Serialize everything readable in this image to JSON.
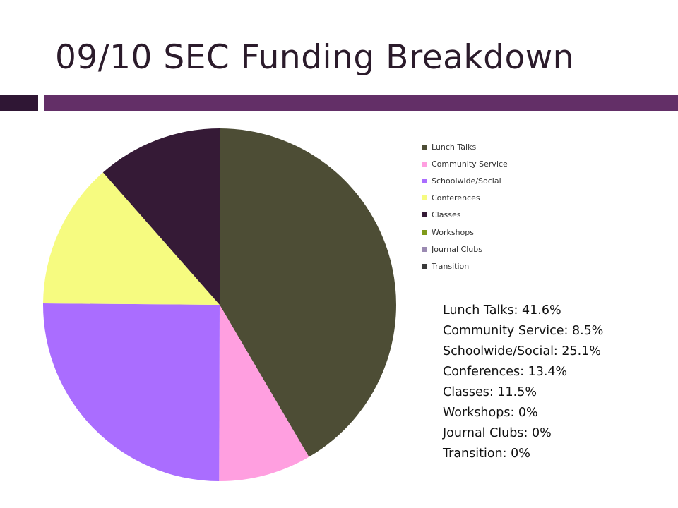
{
  "slide": {
    "title": "09/10 SEC Funding Breakdown"
  },
  "colors": {
    "rule_dark": "#2f1634",
    "rule_light": "#632f67"
  },
  "chart_data": {
    "type": "pie",
    "legend_position": "right",
    "categories": [
      "Lunch Talks",
      "Community Service",
      "Schoolwide/Social",
      "Conferences",
      "Classes",
      "Workshops",
      "Journal Clubs",
      "Transition"
    ],
    "values": [
      41.6,
      8.5,
      25.1,
      13.4,
      11.5,
      0,
      0,
      0
    ],
    "colors": [
      "#4d4d35",
      "#ff9fe0",
      "#aa6dff",
      "#f6fb80",
      "#351a36",
      "#809a1a",
      "#9b8ab2",
      "#3a3a3a"
    ],
    "start_angle": "12 o'clock",
    "direction": "clockwise"
  },
  "stats_lines": [
    "Lunch Talks: 41.6%",
    "Community Service: 8.5%",
    "Schoolwide/Social: 25.1%",
    "Conferences: 13.4%",
    "Classes: 11.5%",
    "Workshops: 0%",
    "Journal Clubs: 0%",
    "Transition: 0%"
  ]
}
